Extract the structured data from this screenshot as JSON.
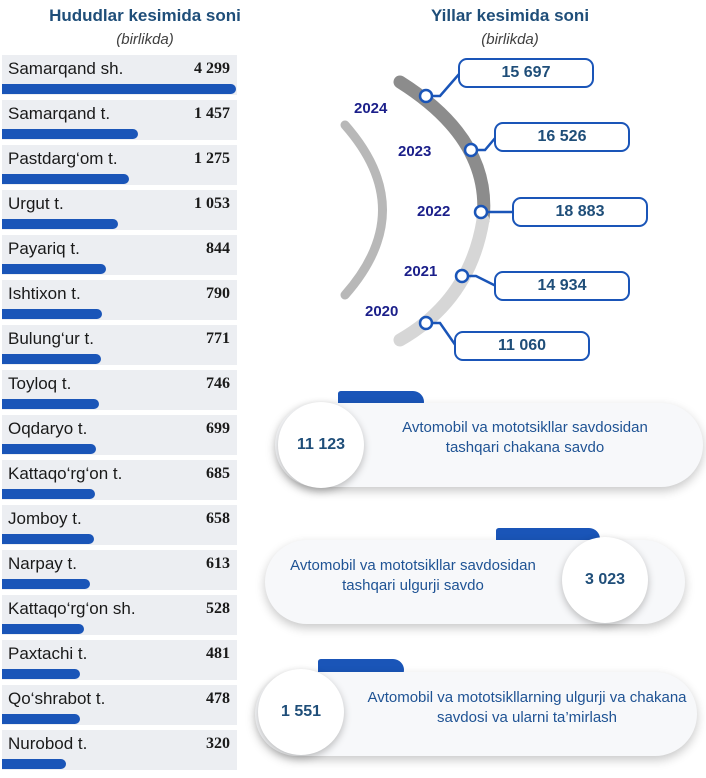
{
  "left_panel": {
    "title": "Hududlar kesimida soni",
    "subtitle": "(birlikda)"
  },
  "right_panel": {
    "title": "Yillar kesimida soni",
    "subtitle": "(birlikda)"
  },
  "chart_data": [
    {
      "type": "bar",
      "title": "Hududlar kesimida soni",
      "subtitle": "(birlikda)",
      "categories": [
        "Samarqand sh.",
        "Samarqand t.",
        "Pastdarg‘om t.",
        "Urgut t.",
        "Payariq t.",
        "Ishtixon t.",
        "Bulung‘ur t.",
        "Toyloq t.",
        "Oqdaryo t.",
        "Kattaqo‘rg‘on t.",
        "Jomboy t.",
        "Narpay t.",
        "Kattaqo‘rg‘on sh.",
        "Paxtachi t.",
        "Qo‘shrabot t.",
        "Nurobod t."
      ],
      "values": [
        4299,
        1457,
        1275,
        1053,
        844,
        790,
        771,
        746,
        699,
        685,
        658,
        613,
        528,
        481,
        478,
        320
      ],
      "value_labels": [
        "4 299",
        "1 457",
        "1 275",
        "1 053",
        "844",
        "790",
        "771",
        "746",
        "699",
        "685",
        "658",
        "613",
        "528",
        "481",
        "478",
        "320"
      ]
    },
    {
      "type": "line",
      "title": "Yillar kesimida soni",
      "subtitle": "(birlikda)",
      "x": [
        "2024",
        "2023",
        "2022",
        "2021",
        "2020"
      ],
      "values": [
        15697,
        16526,
        18883,
        14934,
        11060
      ],
      "value_labels": [
        "15 697",
        "16 526",
        "18 883",
        "14 934",
        "11 060"
      ]
    },
    {
      "type": "table",
      "rows": [
        {
          "value": "11 123",
          "label": "Avtomobil va mototsikllar savdosidan tashqari chakana savdo"
        },
        {
          "value": "3 023",
          "label": "Avtomobil va mototsikllar savdosidan tashqari ulgurji savdo"
        },
        {
          "value": "1 551",
          "label": "Avtomobil va mototsikllarning ulgurji va chakana savdosi va ularni ta’mirlash"
        }
      ]
    }
  ],
  "colors": {
    "bar": "#1a55b8",
    "title": "#1f4e79",
    "year_label": "#1b1f8a",
    "arc_dark": "#8c8c8c",
    "arc_light": "#d0d0d0"
  }
}
